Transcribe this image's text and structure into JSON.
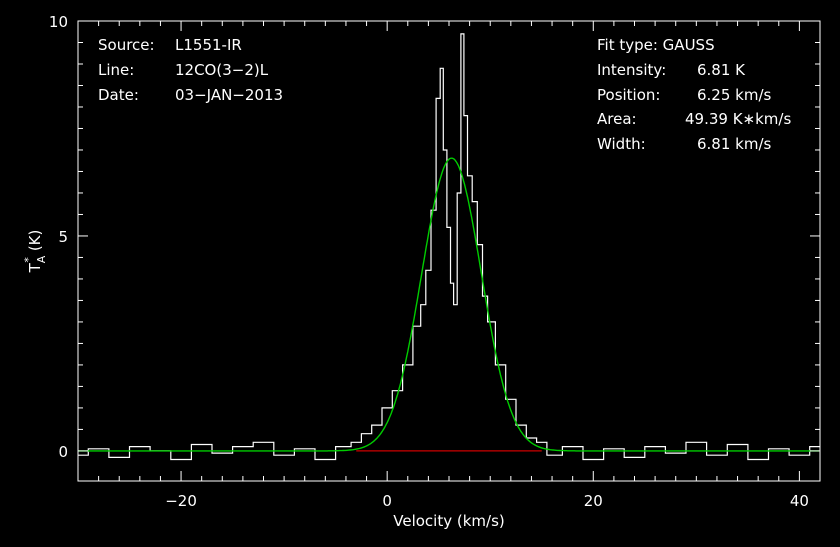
{
  "chart_data": {
    "type": "line",
    "title": "",
    "xlabel": "Velocity (km/s)",
    "ylabel": {
      "main": "T",
      "sub": "A",
      "sup": "*",
      "unit": "(K)"
    },
    "xlim": [
      -30,
      42
    ],
    "ylim": [
      -0.7,
      10
    ],
    "x_ticks": [
      -20,
      0,
      20,
      40
    ],
    "x_tick_labels": [
      "−20",
      "0",
      "20",
      "40"
    ],
    "y_ticks": [
      0,
      5,
      10
    ],
    "y_tick_labels": [
      "0",
      "5",
      "10"
    ],
    "grid": false,
    "colors": {
      "background": "#000000",
      "spectrum": "#ffffff",
      "fit": "#00cc00",
      "baseline": "#cc0000",
      "axes": "#ffffff"
    },
    "spectrum": {
      "x": [
        -30,
        -28,
        -26,
        -24,
        -22,
        -20,
        -18,
        -16,
        -14,
        -12,
        -10,
        -8,
        -6,
        -4,
        -3,
        -2,
        -1,
        0,
        1,
        2,
        3,
        3.5,
        4,
        4.5,
        5,
        5.3,
        5.6,
        6,
        6.3,
        6.6,
        7,
        7.3,
        7.6,
        8,
        8.5,
        9,
        9.5,
        10,
        11,
        12,
        13,
        14,
        15,
        16,
        18,
        20,
        22,
        24,
        26,
        28,
        30,
        32,
        34,
        36,
        38,
        40,
        42
      ],
      "y": [
        -0.1,
        0.05,
        -0.15,
        0.1,
        0.0,
        -0.2,
        0.15,
        -0.05,
        0.1,
        0.2,
        -0.1,
        0.05,
        -0.2,
        0.1,
        0.2,
        0.4,
        0.6,
        1.0,
        1.4,
        2.0,
        2.9,
        3.4,
        4.2,
        5.6,
        8.2,
        8.9,
        7.0,
        5.2,
        3.9,
        3.4,
        6.0,
        9.7,
        7.8,
        6.4,
        5.8,
        4.8,
        3.6,
        3.0,
        2.0,
        1.2,
        0.6,
        0.3,
        0.2,
        -0.1,
        0.1,
        -0.2,
        0.05,
        -0.15,
        0.1,
        -0.05,
        0.2,
        -0.1,
        0.15,
        -0.2,
        0.05,
        -0.1,
        0.1
      ]
    },
    "fit": {
      "type": "gauss",
      "amplitude": 6.81,
      "center": 6.25,
      "fwhm": 6.81
    },
    "baseline": {
      "x": [
        -3,
        15
      ],
      "y": 0
    }
  },
  "info_left": {
    "source_label": "Source:",
    "source_value": "L1551-IR",
    "line_label": "Line:",
    "line_value": "12CO(3−2)L",
    "date_label": "Date:",
    "date_value": "03−JAN−2013"
  },
  "info_right": {
    "fit_type": "Fit type: GAUSS",
    "intensity_label": "Intensity:",
    "intensity_value": "6.81 K",
    "position_label": "Position:",
    "position_value": "6.25 km/s",
    "area_label": "Area:",
    "area_value": "49.39 K∗km/s",
    "width_label": "Width:",
    "width_value": "6.81 km/s"
  }
}
